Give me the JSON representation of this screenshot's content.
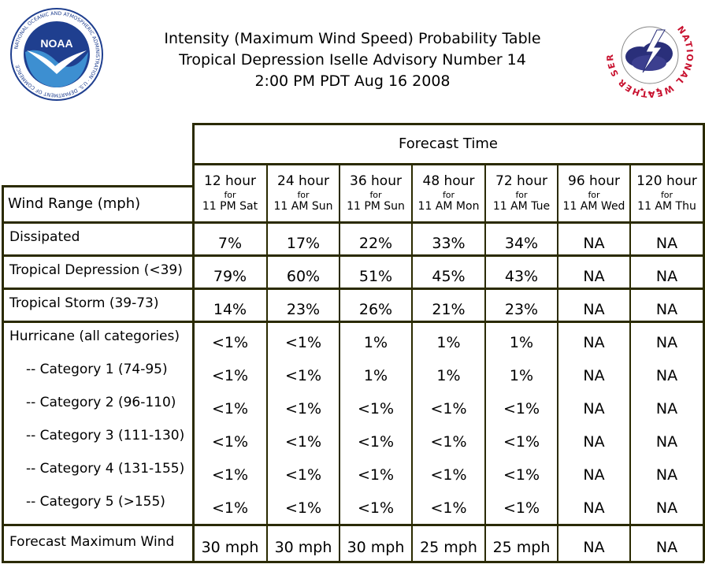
{
  "header": {
    "title_line1": "Intensity (Maximum Wind Speed) Probability Table",
    "title_line2": "Tropical Depression Iselle Advisory Number 14",
    "title_line3": "2:00 PM PDT Aug 16 2008",
    "noaa_logo_text": "NOAA",
    "noaa_ring_text": "NATIONAL OCEANIC AND ATMOSPHERIC ADMINISTRATION · U.S. DEPARTMENT OF COMMERCE",
    "nws_ring_text": "NATIONAL WEATHER SERVICE"
  },
  "table": {
    "forecast_time_label": "Forecast Time",
    "wind_range_label": "Wind Range (mph)",
    "columns": [
      {
        "hour": "12 hour",
        "for": "for",
        "time": "11 PM Sat"
      },
      {
        "hour": "24 hour",
        "for": "for",
        "time": "11 AM Sun"
      },
      {
        "hour": "36 hour",
        "for": "for",
        "time": "11 PM Sun"
      },
      {
        "hour": "48 hour",
        "for": "for",
        "time": "11 AM Mon"
      },
      {
        "hour": "72 hour",
        "for": "for",
        "time": "11 AM Tue"
      },
      {
        "hour": "96 hour",
        "for": "for",
        "time": "11 AM Wed"
      },
      {
        "hour": "120 hour",
        "for": "for",
        "time": "11 AM Thu"
      }
    ],
    "rows": [
      {
        "label": "Dissipated",
        "values": [
          "7%",
          "17%",
          "22%",
          "33%",
          "34%",
          "NA",
          "NA"
        ]
      },
      {
        "label": "Tropical Depression (<39)",
        "values": [
          "79%",
          "60%",
          "51%",
          "45%",
          "43%",
          "NA",
          "NA"
        ]
      },
      {
        "label": "Tropical Storm (39-73)",
        "values": [
          "14%",
          "23%",
          "26%",
          "21%",
          "23%",
          "NA",
          "NA"
        ]
      },
      {
        "label": "Hurricane (all categories)",
        "values": [
          "<1%",
          "<1%",
          "1%",
          "1%",
          "1%",
          "NA",
          "NA"
        ]
      },
      {
        "label": "-- Category 1 (74-95)",
        "values": [
          "<1%",
          "<1%",
          "1%",
          "1%",
          "1%",
          "NA",
          "NA"
        ]
      },
      {
        "label": "-- Category 2 (96-110)",
        "values": [
          "<1%",
          "<1%",
          "<1%",
          "<1%",
          "<1%",
          "NA",
          "NA"
        ]
      },
      {
        "label": "-- Category 3 (111-130)",
        "values": [
          "<1%",
          "<1%",
          "<1%",
          "<1%",
          "<1%",
          "NA",
          "NA"
        ]
      },
      {
        "label": "-- Category 4 (131-155)",
        "values": [
          "<1%",
          "<1%",
          "<1%",
          "<1%",
          "<1%",
          "NA",
          "NA"
        ]
      },
      {
        "label": "-- Category 5 (>155)",
        "values": [
          "<1%",
          "<1%",
          "<1%",
          "<1%",
          "<1%",
          "NA",
          "NA"
        ]
      }
    ],
    "max_wind": {
      "label": "Forecast Maximum Wind",
      "values": [
        "30 mph",
        "30 mph",
        "30 mph",
        "25 mph",
        "25 mph",
        "NA",
        "NA"
      ]
    }
  },
  "colors": {
    "grid": "#2a2a00",
    "noaa_blue": "#1f3f8f",
    "nws_red": "#c8102e"
  }
}
